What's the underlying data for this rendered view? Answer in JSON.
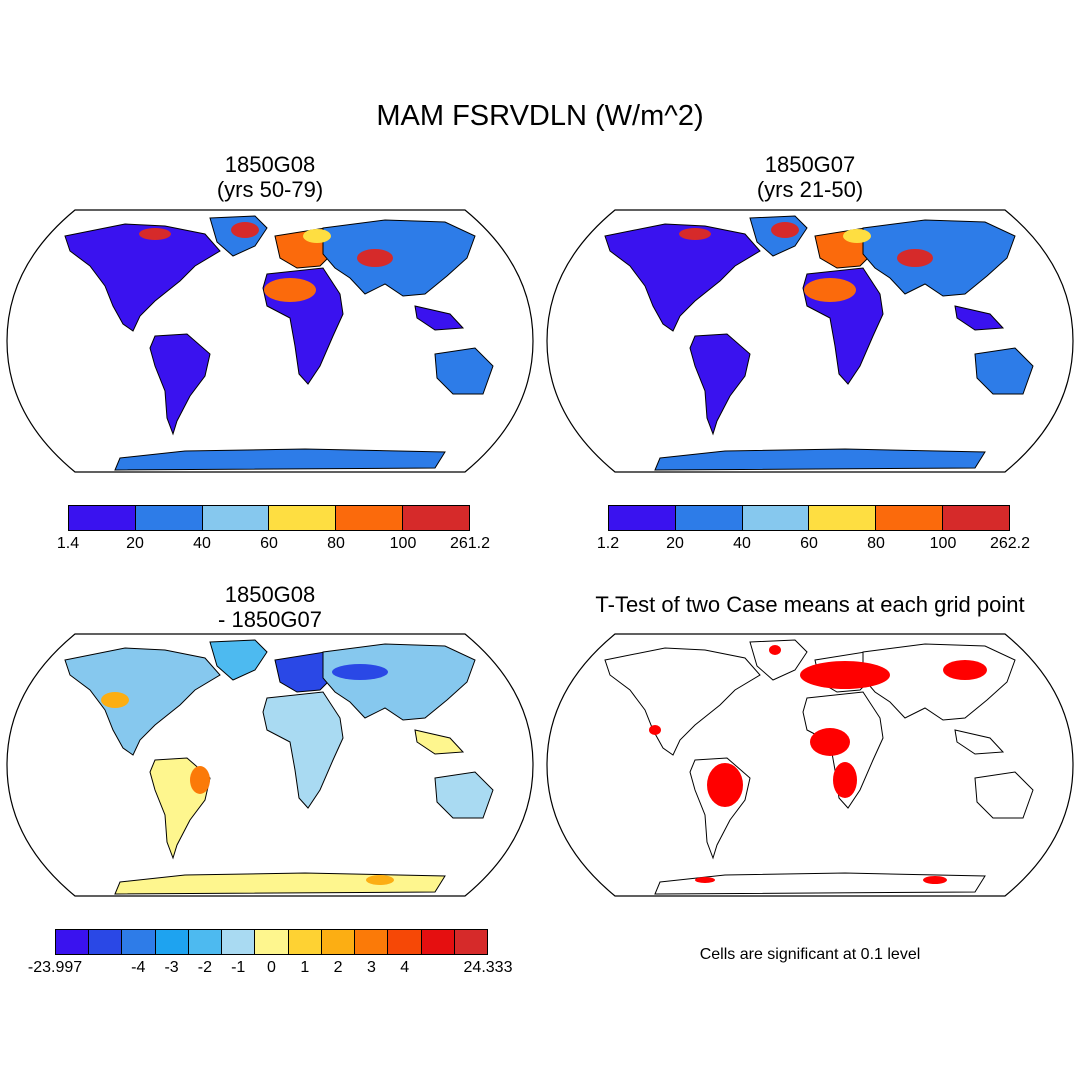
{
  "title": "MAM FSRVDLN (W/m^2)",
  "panels": [
    {
      "id": "case1",
      "title_line1": "1850G08",
      "title_line2": "(yrs 50-79)",
      "colorbar": {
        "colors": [
          "#3a12ef",
          "#2d7ce8",
          "#86c8ee",
          "#fede41",
          "#fb6a0c",
          "#d62a2a"
        ],
        "ticks": [
          "1.4",
          "20",
          "40",
          "60",
          "80",
          "100",
          "261.2"
        ]
      }
    },
    {
      "id": "case2",
      "title_line1": "1850G07",
      "title_line2": "(yrs 21-50)",
      "colorbar": {
        "colors": [
          "#3a12ef",
          "#2d7ce8",
          "#86c8ee",
          "#fede41",
          "#fb6a0c",
          "#d62a2a"
        ],
        "ticks": [
          "1.2",
          "20",
          "40",
          "60",
          "80",
          "100",
          "262.2"
        ]
      }
    },
    {
      "id": "diff",
      "title_line1": "1850G08",
      "title_line2": "- 1850G07",
      "colorbar": {
        "colors": [
          "#3a12ef",
          "#2a48e6",
          "#2e7ce8",
          "#1ea3f0",
          "#4dbaf0",
          "#a9daf2",
          "#fef68e",
          "#fed233",
          "#fcae13",
          "#fb7a08",
          "#f64806",
          "#e50f10",
          "#d62a2a"
        ],
        "ticks": [
          "-23.997",
          "-4",
          "-3",
          "-2",
          "-1",
          "0",
          "1",
          "2",
          "3",
          "4",
          "24.333"
        ]
      }
    },
    {
      "id": "ttest",
      "title_line1": "T-Test of two Case means at each grid point",
      "note": "Cells are significant at 0.1 level",
      "significance_color": "#ff0000"
    }
  ]
}
